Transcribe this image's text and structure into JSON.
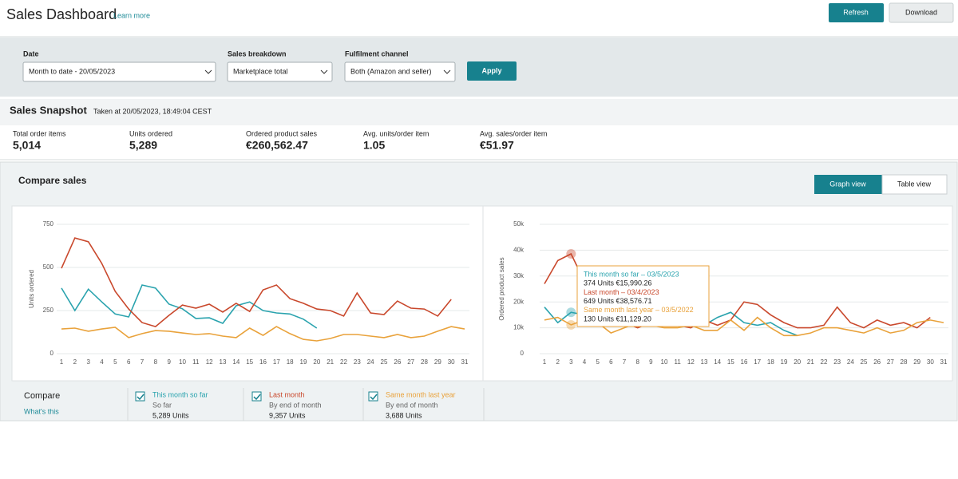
{
  "header": {
    "title": "Sales Dashboard",
    "link": "Learn more",
    "buttons": [
      "Refresh",
      "Download"
    ]
  },
  "filters": [
    {
      "label": "Date",
      "value": "Month to date - 20/05/2023"
    },
    {
      "label": "Sales breakdown",
      "value": "Marketplace total"
    },
    {
      "label": "Fulfilment channel",
      "value": "Both (Amazon and seller)"
    }
  ],
  "apply": "Apply",
  "snapshot": {
    "title": "Sales Snapshot",
    "subtitle": "Taken at 20/05/2023, 18:49:04 CEST",
    "metrics": [
      {
        "label": "Total order items",
        "value": "5,014"
      },
      {
        "label": "Units ordered",
        "value": "5,289"
      },
      {
        "label": "Ordered product sales",
        "value": "€260,562.47"
      },
      {
        "label": "Avg. units/order item",
        "value": "1.05"
      },
      {
        "label": "Avg. sales/order item",
        "value": "€51.97"
      }
    ]
  },
  "compare": {
    "title": "Compare sales",
    "views": [
      "Graph view",
      "Table view"
    ]
  },
  "chart_data": [
    {
      "type": "line",
      "y_label": "Units ordered",
      "categories": [
        "1",
        "2",
        "3",
        "4",
        "5",
        "6",
        "7",
        "8",
        "9",
        "10",
        "11",
        "12",
        "13",
        "14",
        "15",
        "16",
        "17",
        "18",
        "19",
        "20",
        "21",
        "22",
        "23",
        "24",
        "25",
        "26",
        "27",
        "28",
        "29",
        "30",
        "31"
      ],
      "ylim": [
        0,
        750
      ],
      "yticks": [
        0,
        250,
        500,
        750
      ],
      "grid": true,
      "series": [
        {
          "name": "This month so far",
          "color": "#2aa3ae",
          "values": [
            380,
            250,
            374,
            300,
            230,
            213,
            398,
            380,
            287,
            260,
            204,
            208,
            176,
            278,
            300,
            250,
            236,
            230,
            200,
            148,
            null,
            null,
            null,
            null,
            null,
            null,
            null,
            null,
            null,
            null,
            null
          ]
        },
        {
          "name": "Last month",
          "color": "#c9482c",
          "values": [
            495,
            671,
            649,
            523,
            361,
            259,
            180,
            157,
            222,
            282,
            264,
            287,
            241,
            292,
            245,
            370,
            398,
            319,
            292,
            259,
            250,
            218,
            352,
            236,
            227,
            305,
            264,
            259,
            218,
            315,
            null
          ]
        },
        {
          "name": "Same month last year",
          "color": "#e9a23b",
          "values": [
            143,
            148,
            130,
            143,
            153,
            93,
            116,
            134,
            130,
            120,
            111,
            116,
            102,
            93,
            148,
            106,
            157,
            116,
            83,
            74,
            88,
            111,
            111,
            102,
            93,
            111,
            93,
            102,
            130,
            157,
            143
          ]
        }
      ]
    },
    {
      "type": "line",
      "y_label": "Ordered product sales",
      "categories": [
        "1",
        "2",
        "3",
        "4",
        "5",
        "6",
        "7",
        "8",
        "9",
        "10",
        "11",
        "12",
        "13",
        "14",
        "15",
        "16",
        "17",
        "18",
        "19",
        "20",
        "21",
        "22",
        "23",
        "24",
        "25",
        "26",
        "27",
        "28",
        "29",
        "30",
        "31"
      ],
      "ylim": [
        0,
        50000
      ],
      "yticks": [
        0,
        {
          "value": 10000,
          "label": "10k"
        },
        {
          "value": 20000,
          "label": "20k"
        },
        {
          "value": 30000,
          "label": "30k"
        },
        {
          "value": 40000,
          "label": "40k"
        },
        {
          "value": 50000,
          "label": "50k"
        }
      ],
      "grid": true,
      "series": [
        {
          "name": "This month so far",
          "color": "#2aa3ae",
          "values": [
            18000,
            12000,
            15990.26,
            15000,
            13000,
            12000,
            14000,
            13000,
            12000,
            12000,
            11000,
            11000,
            11000,
            14000,
            16000,
            12000,
            11000,
            12000,
            9000,
            7000,
            null,
            null,
            null,
            null,
            null,
            null,
            null,
            null,
            null,
            null,
            null
          ]
        },
        {
          "name": "Last month",
          "color": "#c9482c",
          "values": [
            27000,
            36000,
            38576.71,
            28000,
            20000,
            15000,
            12000,
            10000,
            12000,
            11000,
            11000,
            10000,
            13000,
            11000,
            13000,
            20000,
            19000,
            15000,
            12000,
            10000,
            10000,
            11000,
            18000,
            12000,
            10000,
            13000,
            11000,
            12000,
            10000,
            14000,
            null
          ]
        },
        {
          "name": "Same month last year",
          "color": "#e9a23b",
          "values": [
            13000,
            14000,
            11129.2,
            13000,
            12000,
            8000,
            10000,
            12000,
            11000,
            10000,
            10000,
            11000,
            9000,
            9000,
            13000,
            9000,
            14000,
            10000,
            7000,
            7000,
            8000,
            10000,
            10000,
            9000,
            8000,
            10000,
            8000,
            9000,
            12000,
            13000,
            12000
          ]
        }
      ],
      "tooltip": {
        "index": 2,
        "lines": [
          "This month so far – 03/5/2023",
          "374 Units €15,990.26",
          "Last month – 03/4/2023",
          "649 Units €38,576.71",
          "Same month last year – 03/5/2022",
          "130 Units €11,129.20"
        ]
      }
    }
  ],
  "legend": {
    "title": "Compare",
    "link": "What's this",
    "items": [
      {
        "detail": "So far",
        "units": "5,289 Units"
      },
      {
        "detail": "By end of month",
        "units": "9,357 Units"
      },
      {
        "detail": "By end of month",
        "units": "3,688 Units"
      }
    ]
  }
}
